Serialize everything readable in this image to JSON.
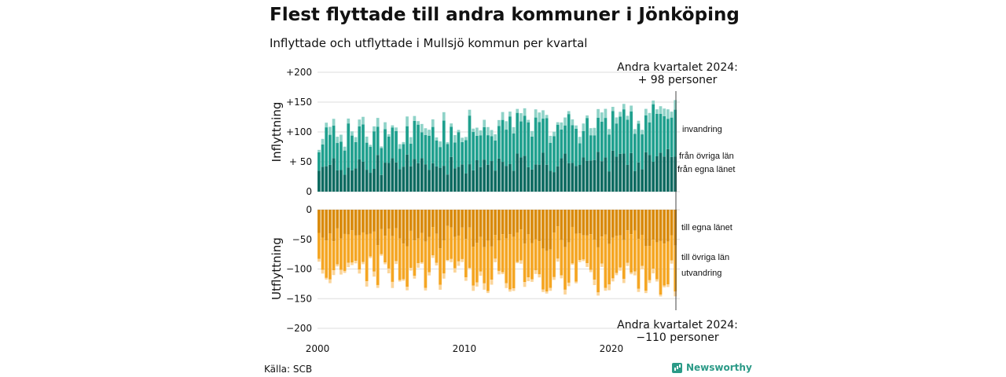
{
  "title": "Flest flyttade till andra kommuner i Jönköping",
  "subtitle": "Inflyttade och utflyttade i Mullsjö kommun per kvartal",
  "source": "Källa: SCB",
  "brand": "Newsworthy",
  "chart_data": {
    "type": "bar",
    "stacked": true,
    "x_ticks": [
      "2000",
      "2010",
      "2020"
    ],
    "panels": [
      {
        "ylabel": "Inflyttning",
        "ylim": [
          0,
          200
        ],
        "y_ticks": [
          "0",
          "+ 50",
          "+100",
          "+150",
          "+200"
        ],
        "y_tick_values": [
          0,
          50,
          100,
          150,
          200
        ],
        "series": [
          {
            "name": "från egna länet",
            "color": "#0e6b61"
          },
          {
            "name": "från övriga län",
            "color": "#1fa08e"
          },
          {
            "name": "invandring",
            "color": "#8fd3c8"
          }
        ],
        "annotation": [
          "Andra kvartalet 2024:",
          "+ 98 personer"
        ]
      },
      {
        "ylabel": "Utflyttning",
        "ylim": [
          -200,
          0
        ],
        "y_ticks": [
          "0",
          "−50",
          "−100",
          "−150",
          "−200"
        ],
        "y_tick_values": [
          0,
          -50,
          -100,
          -150,
          -200
        ],
        "series": [
          {
            "name": "till egna länet",
            "color": "#d98a0b"
          },
          {
            "name": "till övriga län",
            "color": "#f5a623"
          },
          {
            "name": "utvandring",
            "color": "#fbd59a"
          }
        ],
        "annotation": [
          "Andra kvartalet 2024:",
          "−110 personer"
        ]
      }
    ]
  }
}
